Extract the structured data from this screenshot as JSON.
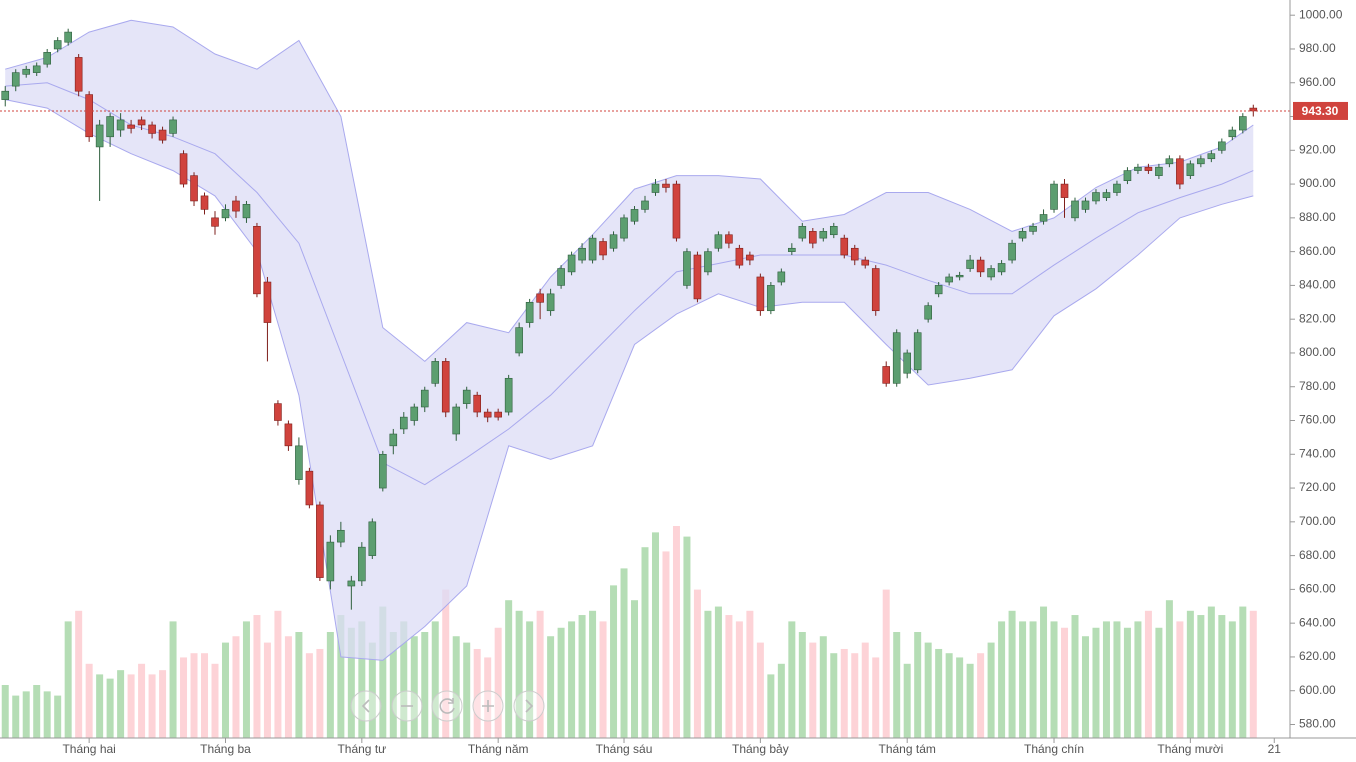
{
  "chart_data": {
    "type": "candlestick",
    "xlim": [
      -0.5,
      122.5
    ],
    "ylim": [
      572,
      1009
    ],
    "xticks": [
      {
        "value": 8,
        "label": "Tháng hai"
      },
      {
        "value": 21,
        "label": "Tháng ba"
      },
      {
        "value": 34,
        "label": "Tháng tư"
      },
      {
        "value": 47,
        "label": "Tháng năm"
      },
      {
        "value": 59,
        "label": "Tháng sáu"
      },
      {
        "value": 72,
        "label": "Tháng bảy"
      },
      {
        "value": 86,
        "label": "Tháng tám"
      },
      {
        "value": 100,
        "label": "Tháng chín"
      },
      {
        "value": 113,
        "label": "Tháng mười"
      },
      {
        "value": 121,
        "label": "21"
      }
    ],
    "yticks": [
      {
        "value": 580,
        "label": "580.00"
      },
      {
        "value": 600,
        "label": "600.00"
      },
      {
        "value": 620,
        "label": "620.00"
      },
      {
        "value": 640,
        "label": "640.00"
      },
      {
        "value": 660,
        "label": "660.00"
      },
      {
        "value": 680,
        "label": "680.00"
      },
      {
        "value": 700,
        "label": "700.00"
      },
      {
        "value": 720,
        "label": "720.00"
      },
      {
        "value": 740,
        "label": "740.00"
      },
      {
        "value": 760,
        "label": "760.00"
      },
      {
        "value": 780,
        "label": "780.00"
      },
      {
        "value": 800,
        "label": "800.00"
      },
      {
        "value": 820,
        "label": "820.00"
      },
      {
        "value": 840,
        "label": "840.00"
      },
      {
        "value": 860,
        "label": "860.00"
      },
      {
        "value": 880,
        "label": "880.00"
      },
      {
        "value": 900,
        "label": "900.00"
      },
      {
        "value": 920,
        "label": "920.00"
      },
      {
        "value": 940,
        "label": "940.00"
      },
      {
        "value": 960,
        "label": "960.00"
      },
      {
        "value": 980,
        "label": "980.00"
      },
      {
        "value": 1000,
        "label": "1000.00"
      }
    ],
    "up_color": "#5c9e70",
    "down_color": "#d0433d",
    "volume_up_color": "#b5ddb5",
    "volume_down_color": "#fdd3d7",
    "open": [
      950,
      958,
      965,
      966,
      971,
      980,
      984,
      975,
      953,
      922,
      928,
      932,
      935,
      938,
      935,
      932,
      930,
      918,
      905,
      893,
      880,
      880,
      890,
      880,
      875,
      842,
      770,
      758,
      725,
      730,
      710,
      665,
      688,
      662,
      665,
      680,
      720,
      745,
      755,
      760,
      768,
      782,
      795,
      752,
      770,
      775,
      765,
      765,
      765,
      800,
      818,
      835,
      825,
      840,
      848,
      855,
      855,
      866,
      862,
      868,
      878,
      885,
      895,
      900,
      900,
      840,
      858,
      848,
      862,
      870,
      862,
      858,
      845,
      825,
      842,
      860,
      868,
      872,
      868,
      870,
      868,
      862,
      855,
      850,
      792,
      782,
      788,
      790,
      820,
      835,
      842,
      845,
      850,
      855,
      845,
      848,
      855,
      868,
      872,
      878,
      885,
      900,
      880,
      885,
      890,
      892,
      895,
      902,
      908,
      910,
      905,
      912,
      915,
      905,
      912,
      915,
      920,
      928,
      932,
      945
    ],
    "high": [
      958,
      968,
      970,
      972,
      980,
      987,
      992,
      977,
      955,
      938,
      942,
      942,
      938,
      940,
      937,
      934,
      940,
      920,
      907,
      895,
      884,
      888,
      893,
      890,
      877,
      845,
      772,
      760,
      750,
      732,
      712,
      692,
      700,
      668,
      688,
      702,
      742,
      755,
      765,
      770,
      780,
      797,
      797,
      770,
      780,
      777,
      767,
      767,
      787,
      818,
      832,
      838,
      838,
      852,
      860,
      865,
      870,
      868,
      872,
      882,
      887,
      893,
      903,
      903,
      902,
      862,
      860,
      862,
      872,
      872,
      864,
      860,
      847,
      842,
      850,
      865,
      877,
      874,
      874,
      877,
      870,
      864,
      857,
      852,
      795,
      814,
      802,
      814,
      830,
      842,
      847,
      848,
      858,
      857,
      852,
      855,
      867,
      874,
      877,
      885,
      902,
      903,
      892,
      892,
      897,
      897,
      902,
      910,
      912,
      912,
      912,
      917,
      917,
      914,
      917,
      920,
      927,
      934,
      942,
      947
    ],
    "low": [
      946,
      955,
      963,
      964,
      969,
      978,
      982,
      952,
      925,
      890,
      922,
      928,
      930,
      932,
      927,
      924,
      928,
      898,
      887,
      882,
      870,
      878,
      880,
      877,
      833,
      795,
      757,
      742,
      722,
      708,
      665,
      660,
      685,
      648,
      662,
      678,
      718,
      740,
      752,
      757,
      765,
      780,
      762,
      748,
      767,
      762,
      759,
      760,
      763,
      798,
      815,
      820,
      822,
      838,
      846,
      853,
      853,
      855,
      860,
      866,
      876,
      883,
      893,
      895,
      866,
      838,
      830,
      846,
      860,
      862,
      850,
      852,
      822,
      823,
      840,
      858,
      866,
      862,
      866,
      868,
      856,
      852,
      850,
      822,
      780,
      780,
      785,
      788,
      818,
      833,
      840,
      843,
      848,
      845,
      843,
      846,
      853,
      866,
      870,
      876,
      883,
      880,
      878,
      883,
      888,
      890,
      893,
      900,
      906,
      906,
      903,
      910,
      897,
      903,
      910,
      913,
      918,
      926,
      930,
      940
    ],
    "close": [
      955,
      966,
      968,
      970,
      978,
      985,
      990,
      955,
      928,
      935,
      940,
      938,
      933,
      935,
      930,
      926,
      938,
      900,
      890,
      885,
      875,
      885,
      884,
      888,
      835,
      818,
      760,
      745,
      745,
      710,
      667,
      688,
      695,
      665,
      685,
      700,
      740,
      752,
      762,
      768,
      778,
      795,
      765,
      768,
      778,
      765,
      762,
      762,
      785,
      815,
      830,
      830,
      835,
      850,
      858,
      862,
      868,
      858,
      870,
      880,
      885,
      890,
      900,
      898,
      868,
      860,
      832,
      860,
      870,
      865,
      852,
      855,
      825,
      840,
      848,
      862,
      875,
      865,
      872,
      875,
      858,
      855,
      852,
      825,
      782,
      812,
      800,
      812,
      828,
      840,
      845,
      846,
      855,
      848,
      850,
      853,
      865,
      872,
      875,
      882,
      900,
      892,
      890,
      890,
      895,
      895,
      900,
      908,
      910,
      908,
      910,
      915,
      900,
      912,
      915,
      918,
      925,
      932,
      940,
      943.3
    ],
    "volume": [
      25,
      20,
      22,
      25,
      22,
      20,
      55,
      60,
      35,
      30,
      28,
      32,
      30,
      35,
      30,
      32,
      55,
      38,
      40,
      40,
      35,
      45,
      48,
      55,
      58,
      45,
      60,
      48,
      50,
      40,
      42,
      50,
      58,
      52,
      55,
      45,
      62,
      50,
      55,
      48,
      50,
      55,
      70,
      48,
      45,
      42,
      38,
      52,
      65,
      60,
      55,
      60,
      48,
      52,
      55,
      58,
      60,
      55,
      72,
      80,
      65,
      90,
      97,
      88,
      100,
      95,
      70,
      60,
      62,
      58,
      55,
      60,
      45,
      30,
      35,
      55,
      50,
      45,
      48,
      40,
      42,
      40,
      45,
      38,
      70,
      50,
      35,
      50,
      45,
      42,
      40,
      38,
      35,
      40,
      45,
      55,
      60,
      55,
      55,
      62,
      55,
      52,
      58,
      48,
      52,
      55,
      55,
      52,
      55,
      60,
      52,
      65,
      55,
      60,
      58,
      62,
      58,
      55,
      62,
      60
    ],
    "bollinger": {
      "fill": "#dcdcf5",
      "line_color": "#a9a9ee",
      "x": [
        0,
        4,
        8,
        12,
        16,
        20,
        24,
        28,
        32,
        36,
        40,
        44,
        48,
        52,
        56,
        60,
        64,
        68,
        72,
        76,
        80,
        84,
        88,
        92,
        96,
        100,
        104,
        108,
        112,
        116,
        119
      ],
      "upper": [
        968,
        975,
        990,
        997,
        993,
        977,
        968,
        985,
        940,
        815,
        795,
        818,
        812,
        845,
        870,
        897,
        905,
        905,
        903,
        878,
        882,
        895,
        895,
        885,
        872,
        880,
        898,
        910,
        913,
        922,
        935
      ],
      "middle": [
        958,
        960,
        950,
        935,
        928,
        918,
        895,
        865,
        800,
        735,
        722,
        738,
        755,
        775,
        800,
        825,
        848,
        853,
        858,
        858,
        858,
        852,
        843,
        835,
        835,
        852,
        868,
        883,
        892,
        900,
        908
      ],
      "lower": [
        950,
        945,
        930,
        918,
        908,
        893,
        860,
        775,
        620,
        618,
        638,
        662,
        745,
        737,
        745,
        805,
        823,
        835,
        827,
        830,
        830,
        805,
        781,
        785,
        790,
        822,
        838,
        858,
        880,
        888,
        893
      ]
    },
    "last_price": {
      "value": 943.3,
      "label": "943.30",
      "color": "#d0433d"
    }
  }
}
